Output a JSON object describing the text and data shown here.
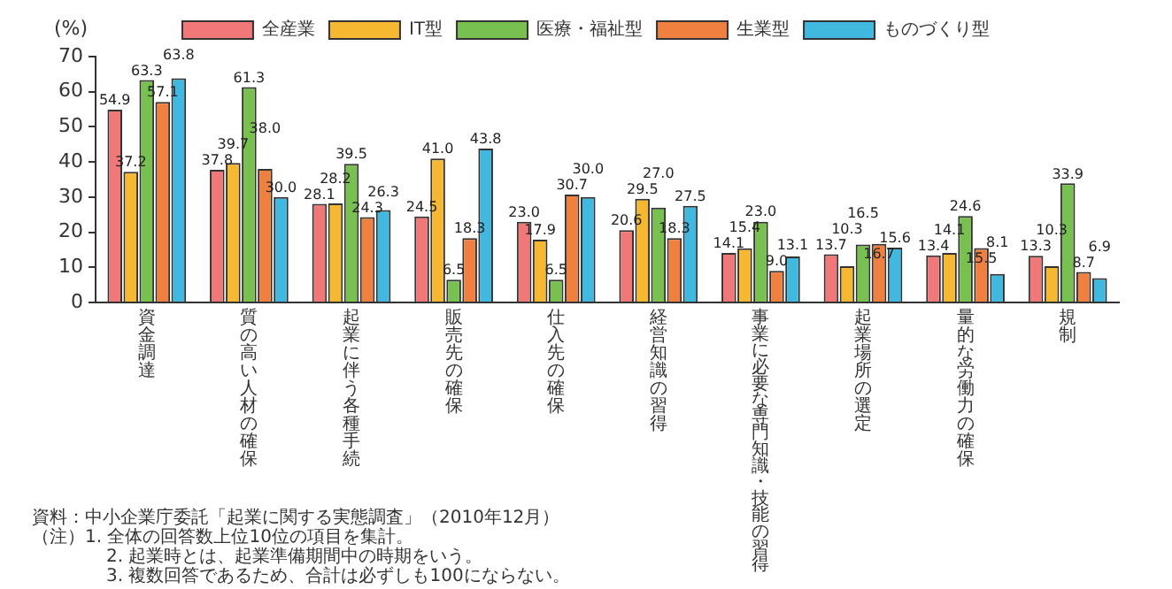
{
  "chart_data": {
    "type": "bar",
    "ylabel": "(%)",
    "categories": [
      "資金調達",
      "質の高い人材の確保",
      "起業に伴う各種手続",
      "販売先の確保",
      "仕入先の確保",
      "経営知識の習得",
      "事業に必要な専門知識・技能の習得",
      "起業場所の選定",
      "量的な労働力の確保",
      "規制"
    ],
    "series": [
      {
        "name": "全産業",
        "color": "#f07878",
        "values": [
          54.9,
          37.8,
          28.1,
          24.5,
          23.0,
          20.6,
          14.1,
          13.7,
          13.4,
          13.3
        ],
        "value_labels": [
          "54.9",
          "37.8",
          "28.1",
          "24.5",
          "23.0",
          "20.6",
          "14.1",
          "13.7",
          "13.4",
          "13.3"
        ]
      },
      {
        "name": "IT型",
        "color": "#f5b830",
        "values": [
          37.2,
          39.7,
          28.2,
          41.0,
          17.9,
          29.5,
          15.4,
          10.3,
          14.1,
          10.3
        ],
        "value_labels": [
          "37.2",
          "39.7",
          "28.2",
          "41.0",
          "17.9",
          "29.5",
          "15.4",
          "10.3",
          "14.1",
          "10.3"
        ]
      },
      {
        "name": "医療・福祉型",
        "color": "#78c050",
        "values": [
          63.3,
          61.3,
          39.5,
          6.5,
          6.5,
          27.0,
          23.0,
          16.5,
          24.6,
          33.9
        ],
        "value_labels": [
          "63.3",
          "61.3",
          "39.5",
          "6.5",
          "6.5",
          "27.0",
          "23.0",
          "16.5",
          "24.6",
          "33.9"
        ]
      },
      {
        "name": "生業型",
        "color": "#f08040",
        "values": [
          57.1,
          38.0,
          24.3,
          18.3,
          30.7,
          18.3,
          9.0,
          16.7,
          15.5,
          8.7
        ],
        "value_labels": [
          "57.1",
          "38.0",
          "24.3",
          "18.3",
          "30.7",
          "18.3",
          "9.0",
          "16.7",
          "15.5",
          "8.7"
        ]
      },
      {
        "name": "ものづくり型",
        "color": "#40b8e0",
        "values": [
          63.8,
          30.0,
          26.3,
          43.8,
          30.0,
          27.5,
          13.1,
          15.6,
          8.1,
          6.9
        ],
        "value_labels": [
          "63.8",
          "30.0",
          "26.3",
          "43.8",
          "30.0",
          "27.5",
          "13.1",
          "15.6",
          "8.1",
          "6.9"
        ]
      }
    ],
    "ylim": [
      0,
      70
    ],
    "yticks": [
      0,
      10,
      20,
      30,
      40,
      50,
      60,
      70
    ],
    "grid": false,
    "legend": "top",
    "annotations": [
      "資料：中小企業庁委託「起業に関する実態調査」（2010年12月）",
      "（注）1. 全体の回答数上位10位の項目を集計。",
      "2. 起業時とは、起業準備期間中の時期をいう。",
      "3. 複数回答であるため、合計は必ずしも100にならない。"
    ]
  }
}
